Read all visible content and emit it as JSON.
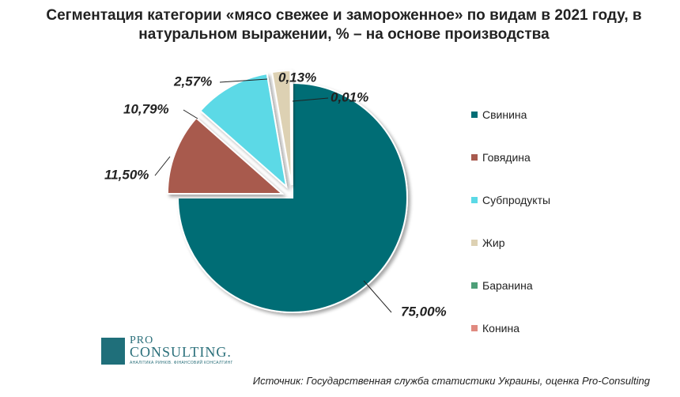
{
  "chart_data": {
    "type": "pie",
    "title": "Сегментация категории «мясо свежее и замороженное» по видам в 2021 году, в натуральном выражении, % – на основе производства",
    "categories": [
      "Свинина",
      "Говядина",
      "Субпродукты",
      "Жир",
      "Баранина",
      "Конина"
    ],
    "values": [
      75.0,
      11.5,
      10.79,
      2.57,
      0.13,
      0.01
    ],
    "labels": [
      "75,00%",
      "11,50%",
      "10,79%",
      "2,57%",
      "0,13%",
      "0,01%"
    ],
    "colors": [
      "#006d75",
      "#a85a4e",
      "#5bd9e6",
      "#ddd1b3",
      "#4e9f78",
      "#e08a80"
    ],
    "legend_position": "right"
  },
  "logo": {
    "pro": "PRO",
    "name": "CONSULTING.",
    "tagline": "Аналітика ринків. Фінансовий консалтинг"
  },
  "source": "Источник: Государственная служба статистики Украины, оценка Pro-Consulting"
}
